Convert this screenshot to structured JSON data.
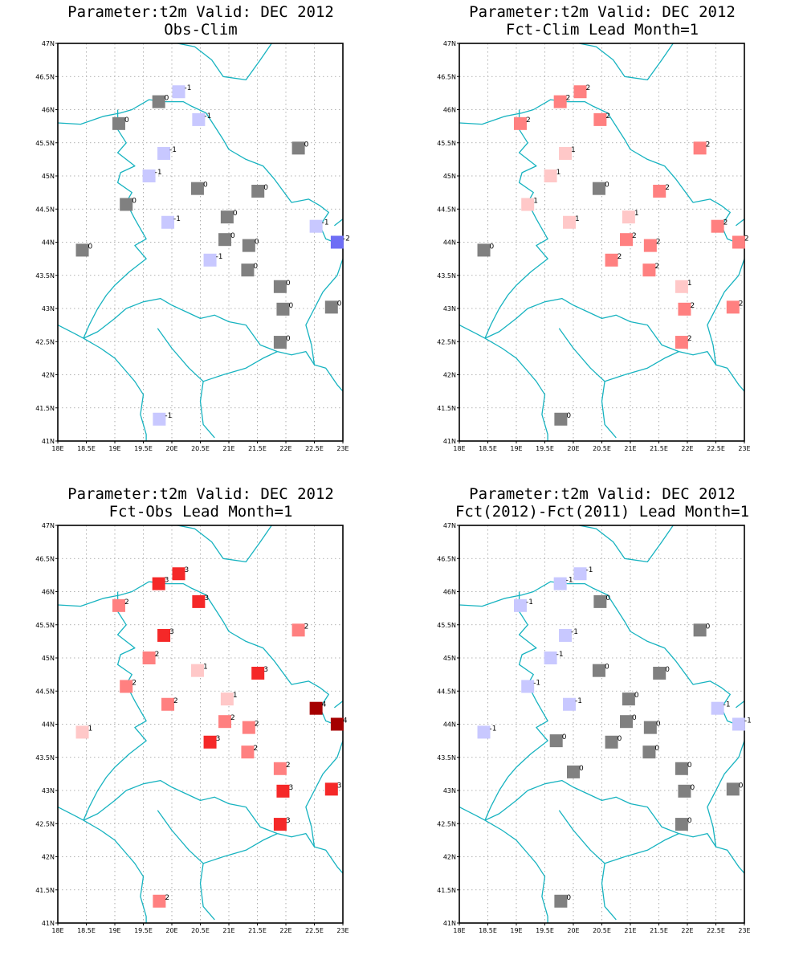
{
  "lon_ticks": [
    "18E",
    "18.5E",
    "19E",
    "19.5E",
    "20E",
    "20.5E",
    "21E",
    "21.5E",
    "22E",
    "22.5E",
    "23E"
  ],
  "lat_ticks": [
    "41N",
    "41.5N",
    "42N",
    "42.5N",
    "43N",
    "43.5N",
    "44N",
    "44.5N",
    "45N",
    "45.5N",
    "46N",
    "46.5N",
    "47N"
  ],
  "colors": {
    "0": "#808080",
    "-1": "#c8c8ff",
    "-2": "#6e6ef5",
    "1": "#ffc8c8",
    "2": "#ff8080",
    "3": "#f52828",
    "4": "#a50000",
    "border": "#17b3c0"
  },
  "panels": [
    {
      "title_line1": "Parameter:t2m Valid: DEC 2012",
      "title_line2": "Obs-Clim",
      "stations": [
        {
          "lon": 20.12,
          "lat": 46.27,
          "v": "-1"
        },
        {
          "lon": 19.77,
          "lat": 46.12,
          "v": "0"
        },
        {
          "lon": 20.47,
          "lat": 45.85,
          "v": "-1"
        },
        {
          "lon": 19.07,
          "lat": 45.79,
          "v": "0"
        },
        {
          "lon": 22.22,
          "lat": 45.42,
          "v": "0"
        },
        {
          "lon": 19.86,
          "lat": 45.34,
          "v": "-1"
        },
        {
          "lon": 19.6,
          "lat": 45.0,
          "v": "-1"
        },
        {
          "lon": 20.45,
          "lat": 44.81,
          "v": "0"
        },
        {
          "lon": 21.51,
          "lat": 44.77,
          "v": "0"
        },
        {
          "lon": 19.2,
          "lat": 44.57,
          "v": "0"
        },
        {
          "lon": 20.97,
          "lat": 44.38,
          "v": "0"
        },
        {
          "lon": 19.93,
          "lat": 44.3,
          "v": "-1"
        },
        {
          "lon": 22.53,
          "lat": 44.24,
          "v": "-1"
        },
        {
          "lon": 20.93,
          "lat": 44.04,
          "v": "0"
        },
        {
          "lon": 22.9,
          "lat": 44.0,
          "v": "-2"
        },
        {
          "lon": 21.35,
          "lat": 43.95,
          "v": "0"
        },
        {
          "lon": 18.43,
          "lat": 43.88,
          "v": "0"
        },
        {
          "lon": 20.67,
          "lat": 43.73,
          "v": "-1"
        },
        {
          "lon": 21.33,
          "lat": 43.58,
          "v": "0"
        },
        {
          "lon": 21.9,
          "lat": 43.33,
          "v": "0"
        },
        {
          "lon": 21.95,
          "lat": 42.99,
          "v": "0"
        },
        {
          "lon": 22.8,
          "lat": 43.02,
          "v": "0"
        },
        {
          "lon": 21.9,
          "lat": 42.49,
          "v": "0"
        },
        {
          "lon": 19.78,
          "lat": 41.33,
          "v": "-1"
        }
      ]
    },
    {
      "title_line1": "Parameter:t2m Valid: DEC 2012",
      "title_line2": "Fct-Clim Lead Month=1",
      "stations": [
        {
          "lon": 20.12,
          "lat": 46.27,
          "v": "2"
        },
        {
          "lon": 19.77,
          "lat": 46.12,
          "v": "2"
        },
        {
          "lon": 20.47,
          "lat": 45.85,
          "v": "2"
        },
        {
          "lon": 19.07,
          "lat": 45.79,
          "v": "2"
        },
        {
          "lon": 22.22,
          "lat": 45.42,
          "v": "2"
        },
        {
          "lon": 19.86,
          "lat": 45.34,
          "v": "1"
        },
        {
          "lon": 19.6,
          "lat": 45.0,
          "v": "1"
        },
        {
          "lon": 20.45,
          "lat": 44.81,
          "v": "0"
        },
        {
          "lon": 21.51,
          "lat": 44.77,
          "v": "2"
        },
        {
          "lon": 19.2,
          "lat": 44.57,
          "v": "1"
        },
        {
          "lon": 20.97,
          "lat": 44.38,
          "v": "1"
        },
        {
          "lon": 19.93,
          "lat": 44.3,
          "v": "1"
        },
        {
          "lon": 22.53,
          "lat": 44.24,
          "v": "2"
        },
        {
          "lon": 20.93,
          "lat": 44.04,
          "v": "2"
        },
        {
          "lon": 22.9,
          "lat": 44.0,
          "v": "2"
        },
        {
          "lon": 21.35,
          "lat": 43.95,
          "v": "2"
        },
        {
          "lon": 18.43,
          "lat": 43.88,
          "v": "0"
        },
        {
          "lon": 20.67,
          "lat": 43.73,
          "v": "2"
        },
        {
          "lon": 21.33,
          "lat": 43.58,
          "v": "2"
        },
        {
          "lon": 21.9,
          "lat": 43.33,
          "v": "1"
        },
        {
          "lon": 21.95,
          "lat": 42.99,
          "v": "2"
        },
        {
          "lon": 22.8,
          "lat": 43.02,
          "v": "2"
        },
        {
          "lon": 21.9,
          "lat": 42.49,
          "v": "2"
        },
        {
          "lon": 19.78,
          "lat": 41.33,
          "v": "0"
        }
      ]
    },
    {
      "title_line1": "Parameter:t2m Valid: DEC 2012",
      "title_line2": "Fct-Obs Lead Month=1",
      "stations": [
        {
          "lon": 20.12,
          "lat": 46.27,
          "v": "3"
        },
        {
          "lon": 19.77,
          "lat": 46.12,
          "v": "3"
        },
        {
          "lon": 20.47,
          "lat": 45.85,
          "v": "3"
        },
        {
          "lon": 19.07,
          "lat": 45.79,
          "v": "2"
        },
        {
          "lon": 22.22,
          "lat": 45.42,
          "v": "2"
        },
        {
          "lon": 19.86,
          "lat": 45.34,
          "v": "3"
        },
        {
          "lon": 19.6,
          "lat": 45.0,
          "v": "2"
        },
        {
          "lon": 20.45,
          "lat": 44.81,
          "v": "1"
        },
        {
          "lon": 21.51,
          "lat": 44.77,
          "v": "3"
        },
        {
          "lon": 19.2,
          "lat": 44.57,
          "v": "2"
        },
        {
          "lon": 20.97,
          "lat": 44.38,
          "v": "1"
        },
        {
          "lon": 19.93,
          "lat": 44.3,
          "v": "2"
        },
        {
          "lon": 22.53,
          "lat": 44.24,
          "v": "4"
        },
        {
          "lon": 20.93,
          "lat": 44.04,
          "v": "2"
        },
        {
          "lon": 22.9,
          "lat": 44.0,
          "v": "4"
        },
        {
          "lon": 21.35,
          "lat": 43.95,
          "v": "2"
        },
        {
          "lon": 18.43,
          "lat": 43.88,
          "v": "1"
        },
        {
          "lon": 20.67,
          "lat": 43.73,
          "v": "3"
        },
        {
          "lon": 21.33,
          "lat": 43.58,
          "v": "2"
        },
        {
          "lon": 21.9,
          "lat": 43.33,
          "v": "2"
        },
        {
          "lon": 21.95,
          "lat": 42.99,
          "v": "3"
        },
        {
          "lon": 22.8,
          "lat": 43.02,
          "v": "3"
        },
        {
          "lon": 21.9,
          "lat": 42.49,
          "v": "3"
        },
        {
          "lon": 19.78,
          "lat": 41.33,
          "v": "2"
        }
      ]
    },
    {
      "title_line1": "Parameter:t2m Valid: DEC 2012",
      "title_line2": "Fct(2012)-Fct(2011) Lead Month=1",
      "stations": [
        {
          "lon": 20.12,
          "lat": 46.27,
          "v": "-1"
        },
        {
          "lon": 19.77,
          "lat": 46.12,
          "v": "-1"
        },
        {
          "lon": 20.47,
          "lat": 45.85,
          "v": "0"
        },
        {
          "lon": 19.07,
          "lat": 45.79,
          "v": "-1"
        },
        {
          "lon": 22.22,
          "lat": 45.42,
          "v": "0"
        },
        {
          "lon": 19.86,
          "lat": 45.34,
          "v": "-1"
        },
        {
          "lon": 19.6,
          "lat": 45.0,
          "v": "-1"
        },
        {
          "lon": 20.45,
          "lat": 44.81,
          "v": "0"
        },
        {
          "lon": 21.51,
          "lat": 44.77,
          "v": "0"
        },
        {
          "lon": 19.2,
          "lat": 44.57,
          "v": "-1"
        },
        {
          "lon": 20.97,
          "lat": 44.38,
          "v": "0"
        },
        {
          "lon": 19.93,
          "lat": 44.3,
          "v": "-1"
        },
        {
          "lon": 22.53,
          "lat": 44.24,
          "v": "-1"
        },
        {
          "lon": 20.93,
          "lat": 44.04,
          "v": "0"
        },
        {
          "lon": 22.9,
          "lat": 44.0,
          "v": "-1"
        },
        {
          "lon": 21.35,
          "lat": 43.95,
          "v": "0"
        },
        {
          "lon": 18.43,
          "lat": 43.88,
          "v": "-1"
        },
        {
          "lon": 19.7,
          "lat": 43.75,
          "v": "0"
        },
        {
          "lon": 20.67,
          "lat": 43.73,
          "v": "0"
        },
        {
          "lon": 21.33,
          "lat": 43.58,
          "v": "0"
        },
        {
          "lon": 21.9,
          "lat": 43.33,
          "v": "0"
        },
        {
          "lon": 20.0,
          "lat": 43.28,
          "v": "0"
        },
        {
          "lon": 21.95,
          "lat": 42.99,
          "v": "0"
        },
        {
          "lon": 22.8,
          "lat": 43.02,
          "v": "0"
        },
        {
          "lon": 21.9,
          "lat": 42.49,
          "v": "0"
        },
        {
          "lon": 19.78,
          "lat": 41.33,
          "v": "0"
        }
      ]
    }
  ]
}
